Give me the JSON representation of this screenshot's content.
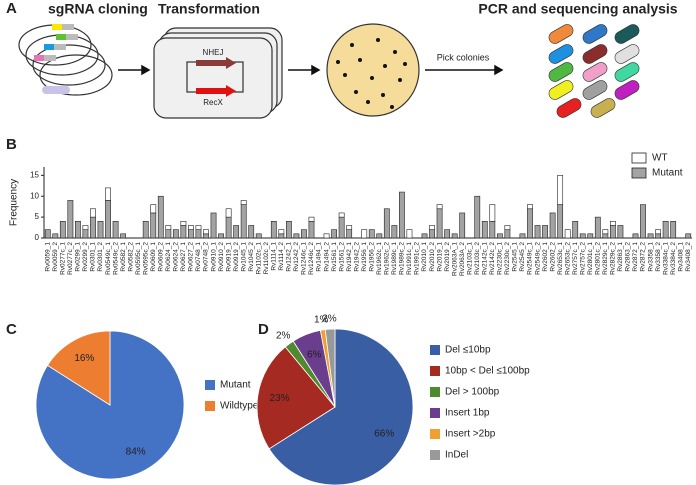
{
  "panels": [
    "A",
    "B",
    "C",
    "D"
  ],
  "panel_a": {
    "step1": "sgRNA cloning",
    "step2": "Transformation",
    "nhej": "NHEJ",
    "recx": "RecX",
    "pick": "Pick colonies",
    "step3": "PCR and sequencing analysis"
  },
  "chart_data": [
    {
      "type": "bar",
      "y_label": "Frequency",
      "stacked": true,
      "legend": "top-right",
      "categories": [
        "Rv0059_1",
        "Rv0059_2",
        "Rv0277c_1",
        "Rv0277c_2",
        "Rv0299_1",
        "Rv0299_2",
        "Rv0301_1",
        "Rv0301_2",
        "Rv0549c_1",
        "Rv0549c_2",
        "Rv0582_1",
        "Rv0582_2",
        "Rv0595c_1",
        "Rv0595c_2",
        "Rv0609_1",
        "Rv0609_2",
        "Rv0624_1",
        "Rv0624_2",
        "Rv0627_1",
        "Rv0627_2",
        "Rv0748_1",
        "Rv0748_2",
        "Rv0910_1",
        "Rv0910_2",
        "Rv0919_1",
        "Rv0919_2",
        "Rv1045_1",
        "Rv1045_2",
        "Rv1102c_1",
        "Rv1102c_2",
        "Rv1114_1",
        "Rv1114_2",
        "Rv1242_1",
        "Rv1242_2",
        "Rv1246c_1",
        "Rv1246c_2",
        "Rv1494_1",
        "Rv1494_2",
        "Rv1561_1",
        "Rv1561_2",
        "Rv1942_1",
        "Rv1942_2",
        "Rv1956_1",
        "Rv1956_2",
        "Rv1962c_1",
        "Rv1962c_2",
        "Rv1989c_1",
        "Rv1989c_2",
        "Rv1991c_1",
        "Rv1991c_2",
        "Rv2010_1",
        "Rv2010_2",
        "Rv2019_1",
        "Rv2019_2",
        "Rv2063A_1",
        "Rv2063A_2",
        "Rv2103c_1",
        "Rv2103c_2",
        "Rv2142c_1",
        "Rv2142c_2",
        "Rv2230c_1",
        "Rv2230c_2",
        "Rv2545_1",
        "Rv2545_2",
        "Rv2549c_1",
        "Rv2549c_2",
        "Rv2602_1",
        "Rv2602_2",
        "Rv2653c_1",
        "Rv2653c_2",
        "Rv2757c_1",
        "Rv2757c_2",
        "Rv2801c_1",
        "Rv2801c_2",
        "Rv2829c_1",
        "Rv2829c_2",
        "Rv2863_1",
        "Rv2863_2",
        "Rv2872_1",
        "Rv2872_2",
        "Rv3358_1",
        "Rv3358_2",
        "Rv3384c_1",
        "Rv3384c_2",
        "Rv3408_1",
        "Rv3408_2"
      ],
      "series": [
        {
          "name": "Mutant",
          "color": "#a3a3a3",
          "values": [
            2,
            1,
            4,
            9,
            4,
            2,
            5,
            4,
            9,
            4,
            1,
            0,
            0,
            4,
            6,
            10,
            2,
            2,
            3,
            2,
            2,
            1,
            6,
            1,
            5,
            3,
            8,
            3,
            1,
            0,
            4,
            1,
            4,
            1,
            2,
            4,
            0,
            0,
            2,
            5,
            2,
            0,
            0,
            2,
            1,
            7,
            3,
            11,
            0,
            0,
            1,
            2,
            7,
            2,
            1,
            6,
            0,
            10,
            4,
            4,
            1,
            2,
            0,
            1,
            7,
            3,
            3,
            6,
            8,
            0,
            4,
            1,
            1,
            5,
            1,
            3,
            3,
            0,
            1,
            8,
            1,
            1,
            4,
            4,
            0,
            1
          ]
        },
        {
          "name": "WT",
          "color": "#ffffff",
          "values": [
            0,
            0,
            0,
            0,
            0,
            1,
            2,
            0,
            3,
            0,
            0,
            0,
            0,
            0,
            2,
            0,
            1,
            0,
            1,
            1,
            1,
            1,
            0,
            0,
            2,
            0,
            1,
            0,
            0,
            0,
            0,
            1,
            0,
            0,
            0,
            1,
            0,
            1,
            0,
            1,
            1,
            0,
            2,
            0,
            0,
            0,
            0,
            0,
            2,
            0,
            0,
            1,
            1,
            0,
            0,
            0,
            0,
            0,
            0,
            4,
            0,
            1,
            0,
            0,
            1,
            0,
            0,
            0,
            7,
            2,
            0,
            0,
            0,
            0,
            1,
            1,
            0,
            0,
            0,
            0,
            0,
            1,
            0,
            0,
            0,
            0
          ]
        }
      ],
      "ylim": [
        0,
        17
      ],
      "yticks": [
        0,
        5,
        10,
        15
      ]
    },
    {
      "type": "pie",
      "categories": [
        "Mutant",
        "Wildtype"
      ],
      "values": [
        84,
        16
      ],
      "value_labels": [
        "84%",
        "16%"
      ],
      "colors": [
        "#4472c4",
        "#ed7d31"
      ]
    },
    {
      "type": "pie",
      "categories": [
        "Del ≤10bp",
        "10bp < Del ≤100bp",
        "Del > 100bp",
        "Insert 1bp",
        "Insert  >2bp",
        "InDel"
      ],
      "values": [
        66,
        23,
        2,
        6,
        1,
        2
      ],
      "value_labels": [
        "66%",
        "23%",
        "2%",
        "6%",
        "1%",
        "2%"
      ],
      "colors": [
        "#3a5ea3",
        "#a52a22",
        "#4f8a2e",
        "#6a3d8d",
        "#f0a030",
        "#999999"
      ]
    }
  ]
}
